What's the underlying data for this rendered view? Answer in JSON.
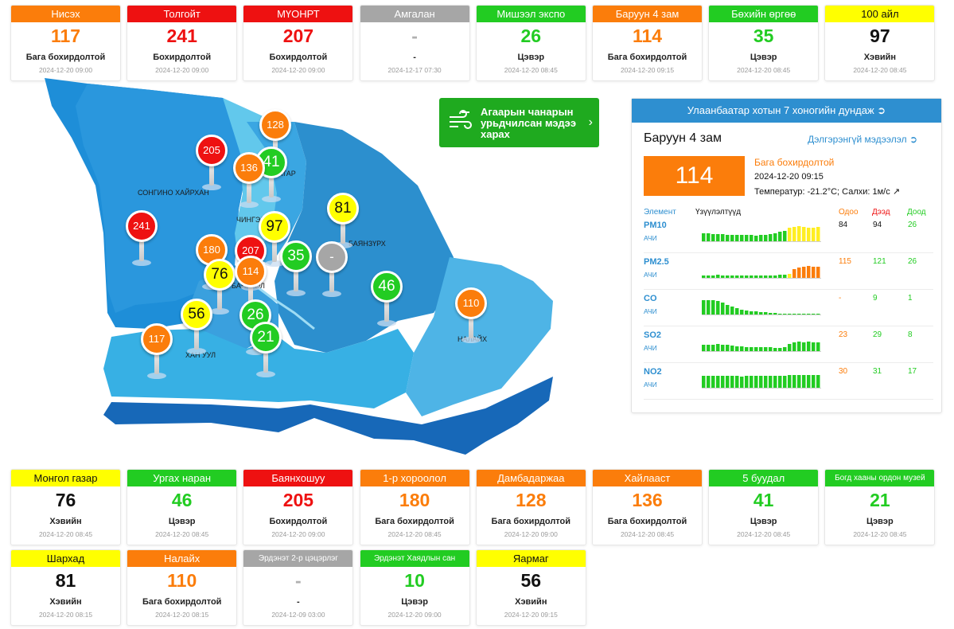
{
  "colors": {
    "good": "#22cc22",
    "moderate": "#ffff00",
    "unhealthy_sensitive": "#fb7d0b",
    "unhealthy": "#ee1111",
    "nodata": "#a6a6a6",
    "accent": "#2e8fd0"
  },
  "top_stations": [
    {
      "name": "Нисэх",
      "aqi": "117",
      "level": "Бага бохирдолтой",
      "time": "2024-12-20 09:00",
      "status": "unhealthy_sensitive"
    },
    {
      "name": "Толгойт",
      "aqi": "241",
      "level": "Бохирдолтой",
      "time": "2024-12-20 09:00",
      "status": "unhealthy"
    },
    {
      "name": "МҮОНРТ",
      "aqi": "207",
      "level": "Бохирдолтой",
      "time": "2024-12-20 09:00",
      "status": "unhealthy"
    },
    {
      "name": "Амгалан",
      "aqi": "-",
      "level": "-",
      "time": "2024-12-17 07:30",
      "status": "nodata"
    },
    {
      "name": "Мишээл экспо",
      "aqi": "26",
      "level": "Цэвэр",
      "time": "2024-12-20 08:45",
      "status": "good"
    },
    {
      "name": "Баруун 4 зам",
      "aqi": "114",
      "level": "Бага бохирдолтой",
      "time": "2024-12-20 09:15",
      "status": "unhealthy_sensitive"
    },
    {
      "name": "Бөхийн өргөө",
      "aqi": "35",
      "level": "Цэвэр",
      "time": "2024-12-20 08:45",
      "status": "good"
    },
    {
      "name": "100 айл",
      "aqi": "97",
      "level": "Хэвийн",
      "time": "2024-12-20 08:45",
      "status": "moderate"
    }
  ],
  "bottom_stations": [
    {
      "name": "Монгол газар",
      "aqi": "76",
      "level": "Хэвийн",
      "time": "2024-12-20 08:45",
      "status": "moderate"
    },
    {
      "name": "Ургах наран",
      "aqi": "46",
      "level": "Цэвэр",
      "time": "2024-12-20 08:45",
      "status": "good"
    },
    {
      "name": "Баянхошуу",
      "aqi": "205",
      "level": "Бохирдолтой",
      "time": "2024-12-20 09:00",
      "status": "unhealthy"
    },
    {
      "name": "1-р хороолол",
      "aqi": "180",
      "level": "Бага бохирдолтой",
      "time": "2024-12-20 08:45",
      "status": "unhealthy_sensitive"
    },
    {
      "name": "Дамбадаржаа",
      "aqi": "128",
      "level": "Бага бохирдолтой",
      "time": "2024-12-20 09:00",
      "status": "unhealthy_sensitive"
    },
    {
      "name": "Хайлааст",
      "aqi": "136",
      "level": "Бага бохирдолтой",
      "time": "2024-12-20 08:45",
      "status": "unhealthy_sensitive"
    },
    {
      "name": "5 буудал",
      "aqi": "41",
      "level": "Цэвэр",
      "time": "2024-12-20 08:45",
      "status": "good"
    },
    {
      "name": "Богд хааны ордон музей",
      "aqi": "21",
      "level": "Цэвэр",
      "time": "2024-12-20 08:45",
      "status": "good"
    },
    {
      "name": "Шархад",
      "aqi": "81",
      "level": "Хэвийн",
      "time": "2024-12-20 08:15",
      "status": "moderate"
    },
    {
      "name": "Налайх",
      "aqi": "110",
      "level": "Бага бохирдолтой",
      "time": "2024-12-20 08:15",
      "status": "unhealthy_sensitive"
    },
    {
      "name": "Эрдэнэт 2-р цэцэрлэг",
      "aqi": "-",
      "level": "-",
      "time": "2024-12-09 03:00",
      "status": "nodata"
    },
    {
      "name": "Эрдэнэт Хаядлын сан",
      "aqi": "10",
      "level": "Цэвэр",
      "time": "2024-12-20 09:00",
      "status": "good"
    },
    {
      "name": "Яармаг",
      "aqi": "56",
      "level": "Хэвийн",
      "time": "2024-12-20 09:15",
      "status": "moderate"
    }
  ],
  "map": {
    "district_labels": [
      "СОНГИНО ХАЙРХАН",
      "ЧИНГЭЛТЭЙ",
      "СҮХБААТАР",
      "БАЯНЗҮРХ",
      "БАЯНГОЛ",
      "ХАН УУЛ",
      "НАЛАЙХ"
    ],
    "pins": [
      {
        "value": "205",
        "status": "unhealthy"
      },
      {
        "value": "128",
        "status": "unhealthy_sensitive"
      },
      {
        "value": "41",
        "status": "good"
      },
      {
        "value": "136",
        "status": "unhealthy_sensitive"
      },
      {
        "value": "241",
        "status": "unhealthy"
      },
      {
        "value": "97",
        "status": "moderate"
      },
      {
        "value": "81",
        "status": "moderate"
      },
      {
        "value": "180",
        "status": "unhealthy_sensitive"
      },
      {
        "value": "207",
        "status": "unhealthy"
      },
      {
        "value": "76",
        "status": "moderate"
      },
      {
        "value": "114",
        "status": "unhealthy_sensitive"
      },
      {
        "value": "35",
        "status": "good"
      },
      {
        "value": "-",
        "status": "nodata"
      },
      {
        "value": "46",
        "status": "good"
      },
      {
        "value": "56",
        "status": "moderate"
      },
      {
        "value": "26",
        "status": "good"
      },
      {
        "value": "117",
        "status": "unhealthy_sensitive"
      },
      {
        "value": "21",
        "status": "good"
      },
      {
        "value": "110",
        "status": "unhealthy_sensitive"
      }
    ]
  },
  "forecast": {
    "label": "Агаарын чанарын урьдчилсан мэдээ харах",
    "icon": "wind-icon"
  },
  "panel": {
    "title": "Улаанбаатар хотын 7 хоногийн дундаж",
    "station": "Баруун 4 зам",
    "more_link": "Дэлгэрэнгүй мэдээлэл",
    "aqi": "114",
    "level": "Бага бохирдолтой",
    "time": "2024-12-20 09:15",
    "weather": "Температур: -21.2°C; Салхи: 1м/с",
    "col_element": "Элемент",
    "col_chart": "Үзүүлэлтүүд",
    "col_now": "Одоо",
    "col_max": "Дээд",
    "col_min": "Доод",
    "pollutants": [
      {
        "name": "PM10",
        "unit": "АЧИ",
        "now": "84",
        "max": "94",
        "min": "26",
        "now_status": "dark",
        "series": [
          10,
          10,
          9,
          9,
          9,
          8,
          8,
          8,
          8,
          8,
          8,
          7,
          8,
          8,
          9,
          10,
          12,
          13,
          17,
          18,
          19,
          18,
          17,
          17,
          18
        ]
      },
      {
        "name": "PM2.5",
        "unit": "АЧИ",
        "now": "115",
        "max": "121",
        "min": "26",
        "now_status": "unhealthy_sensitive",
        "series": [
          3,
          3,
          3,
          4,
          3,
          3,
          3,
          3,
          3,
          3,
          3,
          3,
          3,
          3,
          3,
          3,
          4,
          4,
          5,
          11,
          13,
          14,
          15,
          14,
          14
        ]
      },
      {
        "name": "CO",
        "unit": "АЧИ",
        "now": "-",
        "max": "9",
        "min": "1",
        "now_status": "unhealthy_sensitive",
        "series": [
          18,
          18,
          18,
          17,
          15,
          12,
          10,
          8,
          6,
          5,
          4,
          4,
          3,
          3,
          2,
          2,
          1,
          1,
          1,
          1,
          1,
          1,
          1,
          1,
          1
        ]
      },
      {
        "name": "SO2",
        "unit": "АЧИ",
        "now": "23",
        "max": "29",
        "min": "8",
        "now_status": "unhealthy_sensitive",
        "series": [
          8,
          8,
          8,
          9,
          8,
          8,
          7,
          6,
          6,
          5,
          5,
          5,
          5,
          5,
          5,
          4,
          4,
          5,
          9,
          11,
          12,
          11,
          12,
          11,
          11
        ]
      },
      {
        "name": "NO2",
        "unit": "АЧИ",
        "now": "30",
        "max": "31",
        "min": "17",
        "now_status": "unhealthy_sensitive",
        "series": [
          15,
          15,
          15,
          15,
          15,
          15,
          15,
          15,
          14,
          15,
          15,
          15,
          15,
          15,
          15,
          15,
          15,
          15,
          16,
          16,
          16,
          16,
          16,
          16,
          16
        ]
      }
    ]
  }
}
